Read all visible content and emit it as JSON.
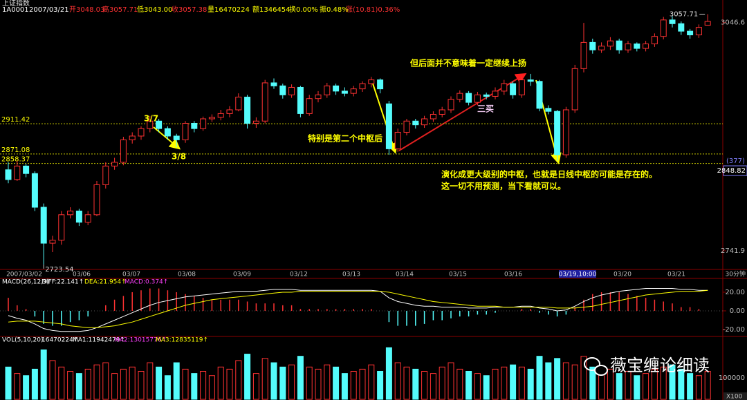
{
  "chart_data": [
    {
      "type": "candlestick",
      "title": "上证指数",
      "info": [
        "1A0001",
        "2007/03/21",
        "开3048.03",
        "高3057.71",
        "低3043.00",
        "收3057.38",
        "量16470224",
        "额1346454",
        "换0.00%",
        "振0.48%",
        "涨(10.81)0.36%"
      ],
      "candles": [
        [
          2850,
          2860,
          2832,
          2837
        ],
        [
          2837,
          2862,
          2835,
          2855
        ],
        [
          2855,
          2858,
          2840,
          2845
        ],
        [
          2845,
          2848,
          2795,
          2800
        ],
        [
          2800,
          2805,
          2723.54,
          2752
        ],
        [
          2752,
          2762,
          2740,
          2756
        ],
        [
          2756,
          2795,
          2750,
          2790
        ],
        [
          2790,
          2800,
          2785,
          2795
        ],
        [
          2795,
          2798,
          2775,
          2780
        ],
        [
          2780,
          2795,
          2776,
          2790
        ],
        [
          2790,
          2835,
          2788,
          2830
        ],
        [
          2830,
          2860,
          2825,
          2855
        ],
        [
          2855,
          2866,
          2850,
          2860
        ],
        [
          2860,
          2894,
          2856,
          2890
        ],
        [
          2890,
          2900,
          2885,
          2895
        ],
        [
          2895,
          2908,
          2890,
          2905
        ],
        [
          2905,
          2922,
          2900,
          2915
        ],
        [
          2915,
          2918,
          2900,
          2905
        ],
        [
          2905,
          2908,
          2890,
          2895
        ],
        [
          2895,
          2898,
          2880,
          2890
        ],
        [
          2890,
          2915,
          2886,
          2912
        ],
        [
          2912,
          2915,
          2900,
          2905
        ],
        [
          2905,
          2921,
          2902,
          2918
        ],
        [
          2918,
          2924,
          2914,
          2920
        ],
        [
          2920,
          2930,
          2916,
          2925
        ],
        [
          2925,
          2935,
          2920,
          2930
        ],
        [
          2930,
          2952,
          2928,
          2947
        ],
        [
          2947,
          2950,
          2905,
          2912
        ],
        [
          2912,
          2920,
          2906,
          2915
        ],
        [
          2915,
          2970,
          2912,
          2966
        ],
        [
          2966,
          2972,
          2958,
          2962
        ],
        [
          2962,
          2965,
          2945,
          2950
        ],
        [
          2950,
          2964,
          2946,
          2960
        ],
        [
          2960,
          2962,
          2920,
          2925
        ],
        [
          2925,
          2950,
          2922,
          2945
        ],
        [
          2945,
          2955,
          2940,
          2950
        ],
        [
          2950,
          2966,
          2946,
          2962
        ],
        [
          2962,
          2965,
          2950,
          2955
        ],
        [
          2955,
          2960,
          2948,
          2952
        ],
        [
          2952,
          2962,
          2948,
          2958
        ],
        [
          2958,
          2968,
          2954,
          2965
        ],
        [
          2965,
          2974,
          2960,
          2970
        ],
        [
          2970,
          2972,
          2952,
          2958
        ],
        [
          2938,
          2942,
          2870,
          2878
        ],
        [
          2878,
          2905,
          2874,
          2900
        ],
        [
          2900,
          2918,
          2896,
          2915
        ],
        [
          2915,
          2918,
          2905,
          2910
        ],
        [
          2910,
          2922,
          2906,
          2918
        ],
        [
          2918,
          2928,
          2914,
          2924
        ],
        [
          2924,
          2934,
          2920,
          2930
        ],
        [
          2930,
          2948,
          2926,
          2944
        ],
        [
          2944,
          2956,
          2940,
          2952
        ],
        [
          2952,
          2955,
          2936,
          2940
        ],
        [
          2940,
          2954,
          2936,
          2950
        ],
        [
          2950,
          2953,
          2944,
          2948
        ],
        [
          2948,
          2960,
          2944,
          2955
        ],
        [
          2955,
          2970,
          2950,
          2965
        ],
        [
          2965,
          2968,
          2945,
          2950
        ],
        [
          2950,
          2974,
          2946,
          2970
        ],
        [
          2970,
          2978,
          2962,
          2968
        ],
        [
          2968,
          2970,
          2928,
          2932
        ],
        [
          2932,
          2936,
          2924,
          2928
        ],
        [
          2928,
          2930,
          2862,
          2870
        ],
        [
          2870,
          2934,
          2866,
          2930
        ],
        [
          2930,
          2990,
          2926,
          2985
        ],
        [
          2985,
          3046,
          2980,
          3020
        ],
        [
          3020,
          3025,
          3005,
          3010
        ],
        [
          3010,
          3020,
          3006,
          3015
        ],
        [
          3015,
          3027,
          3010,
          3022
        ],
        [
          3022,
          3025,
          3005,
          3010
        ],
        [
          3010,
          3022,
          3006,
          3018
        ],
        [
          3018,
          3020,
          3008,
          3012
        ],
        [
          3012,
          3022,
          3008,
          3018
        ],
        [
          3018,
          3032,
          3014,
          3028
        ],
        [
          3028,
          3054,
          3024,
          3050
        ],
        [
          3050,
          3055,
          3040,
          3045
        ],
        [
          3045,
          3048,
          3030,
          3035
        ],
        [
          3035,
          3038,
          3025,
          3030
        ],
        [
          3030,
          3044,
          3026,
          3040
        ],
        [
          3043,
          3057.71,
          3043,
          3048
        ]
      ],
      "ylim": [
        2717,
        3060
      ],
      "yticks": [
        3046.6,
        2741.9
      ],
      "levels": [
        2911.42,
        2871.08,
        2858.37
      ],
      "cursor": 2848.82,
      "cursor_label": "(377)",
      "x_labels": [
        "2007/03/02",
        "03/06",
        "03/07",
        "03/08",
        "03/09",
        "03/12",
        "03/13",
        "03/14",
        "03/15",
        "03/16",
        "03/19,10:00",
        "03/20",
        "03/21"
      ],
      "x_unit": "30分钟",
      "annotations": [
        "3/7",
        "3/8",
        "特别是第二个中枢后",
        "但后面并不意味着一定继续上扬",
        "三买",
        "演化成更大级别的中枢，也就是日线中枢的可能是存在的。",
        "这一切不用预测，当下看就可以。"
      ]
    },
    {
      "type": "macd",
      "title": "MACD(26,12,9)",
      "legend": [
        "DIFF:22.141↑",
        "DEA:21.954↑",
        "MACD:0.374↑"
      ],
      "series": [
        {
          "name": "DIFF",
          "color": "#ffffff",
          "values": [
            -5,
            -8,
            -10,
            -14,
            -19,
            -21,
            -22,
            -22,
            -22,
            -21,
            -18,
            -14,
            -10,
            -6,
            -2,
            2,
            6,
            9,
            11,
            13,
            15,
            16,
            17,
            18,
            19,
            20,
            21,
            21,
            21,
            22,
            23,
            23,
            23,
            22,
            22,
            22,
            22,
            22,
            22,
            22,
            22,
            22,
            21,
            14,
            10,
            8,
            6,
            5,
            5,
            4,
            4,
            4,
            3,
            3,
            3,
            4,
            4,
            4,
            5,
            5,
            3,
            2,
            0,
            1,
            5,
            10,
            14,
            17,
            19,
            21,
            22,
            23,
            24,
            24,
            24,
            24,
            23,
            23,
            22,
            22
          ]
        },
        {
          "name": "DEA",
          "color": "#ffff00",
          "values": [
            -12,
            -11,
            -11,
            -11,
            -12,
            -13,
            -14,
            -16,
            -17,
            -18,
            -18,
            -17,
            -16,
            -14,
            -12,
            -9,
            -6,
            -3,
            0,
            3,
            6,
            8,
            10,
            12,
            13,
            14,
            15,
            16,
            17,
            18,
            19,
            20,
            20,
            21,
            21,
            21,
            21,
            21,
            21,
            21,
            21,
            21,
            21,
            20,
            18,
            16,
            14,
            12,
            10,
            9,
            8,
            7,
            6,
            5,
            5,
            5,
            4,
            4,
            4,
            4,
            4,
            4,
            3,
            3,
            3,
            4,
            5,
            7,
            9,
            11,
            13,
            15,
            17,
            18,
            19,
            20,
            21,
            21,
            21,
            22
          ]
        },
        {
          "name": "MACD",
          "color": "#ff3232",
          "values": [
            14,
            6,
            2,
            -6,
            -14,
            -16,
            -16,
            -12,
            -10,
            -6,
            0,
            6,
            12,
            16,
            20,
            22,
            24,
            24,
            22,
            20,
            18,
            16,
            14,
            12,
            12,
            12,
            12,
            10,
            8,
            8,
            8,
            6,
            6,
            2,
            2,
            2,
            2,
            2,
            2,
            2,
            2,
            2,
            0,
            -12,
            -16,
            -16,
            -16,
            -14,
            -10,
            -10,
            -8,
            -6,
            -6,
            -4,
            -4,
            -2,
            0,
            0,
            2,
            2,
            -2,
            -4,
            -6,
            -4,
            4,
            12,
            18,
            20,
            20,
            20,
            18,
            16,
            14,
            12,
            10,
            8,
            4,
            4,
            2,
            0
          ]
        }
      ],
      "ylim": [
        -27.4,
        28.1
      ],
      "yticks": [
        {
          "value": 20,
          "label": "20.00"
        },
        {
          "value": 0,
          "label": "0.00"
        },
        {
          "value": -20,
          "label": "-20.00"
        }
      ]
    },
    {
      "type": "bar",
      "title": "VOL(5,10,20)",
      "legend": [
        "16470224↑",
        "MA1:11942479↑",
        "MA2:13015776↑",
        "MA3:12835119↑"
      ],
      "values": [
        150000,
        120000,
        110000,
        140000,
        230000,
        180000,
        150000,
        130000,
        120000,
        140000,
        160000,
        170000,
        120000,
        140000,
        150000,
        130000,
        170000,
        150000,
        110000,
        170000,
        140000,
        120000,
        130000,
        110000,
        150000,
        140000,
        180000,
        210000,
        120000,
        190000,
        170000,
        150000,
        160000,
        200000,
        150000,
        140000,
        160000,
        150000,
        120000,
        130000,
        140000,
        160000,
        130000,
        240000,
        170000,
        150000,
        140000,
        130000,
        120000,
        150000,
        170000,
        140000,
        130000,
        120000,
        110000,
        140000,
        150000,
        160000,
        150000,
        140000,
        200000,
        170000,
        190000,
        170000,
        160000,
        200000,
        150000,
        130000,
        140000,
        120000,
        130000,
        110000,
        120000,
        140000,
        150000,
        160000,
        140000,
        120000,
        110000,
        130000
      ],
      "ylim": [
        0,
        260000
      ],
      "yticks": [
        100000
      ],
      "unit": "X100"
    }
  ],
  "watermark": "薇宝缠论细读"
}
